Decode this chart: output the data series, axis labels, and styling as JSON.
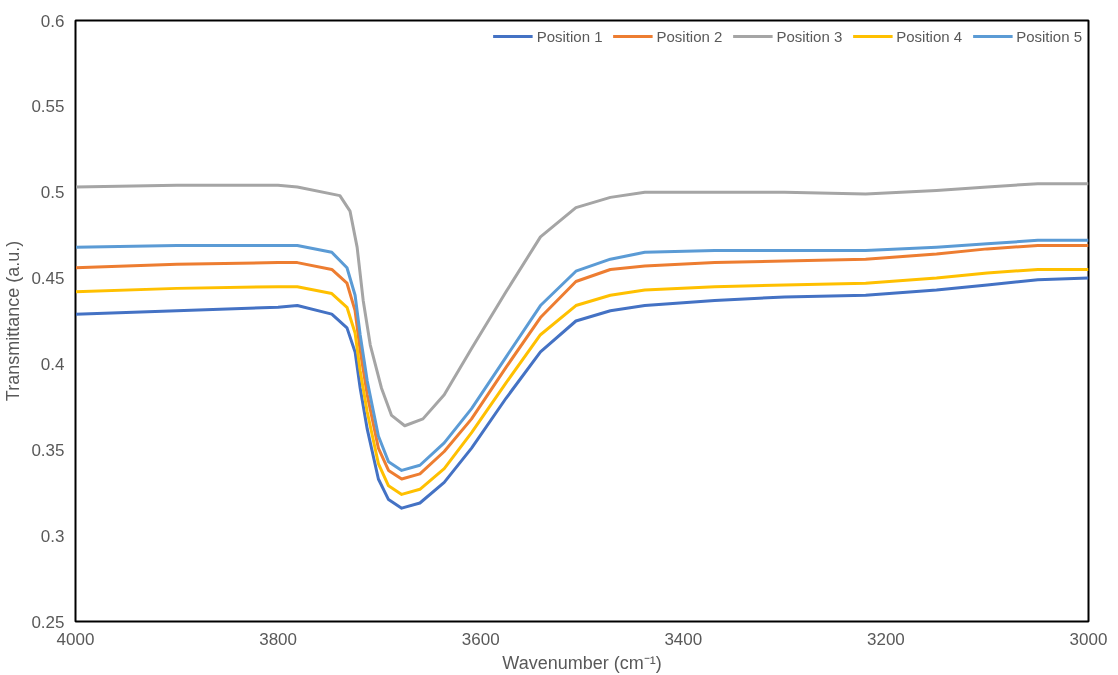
{
  "chart_data": {
    "type": "line",
    "xlabel": "Wavenumber (cm⁻¹)",
    "ylabel": "Transmittance (a.u.)",
    "x": [
      4000,
      3900,
      3800,
      3781,
      3747,
      3732,
      3724,
      3719,
      3712,
      3701,
      3691,
      3678,
      3660,
      3636,
      3609,
      3575,
      3541,
      3506,
      3472,
      3438,
      3369,
      3300,
      3220,
      3150,
      3100,
      3050,
      3000
    ],
    "series": [
      {
        "name": "Position 1",
        "color": "#4472c4",
        "values": [
          0.429,
          0.431,
          0.433,
          0.434,
          0.429,
          0.421,
          0.407,
          0.386,
          0.362,
          0.333,
          0.321,
          0.316,
          0.319,
          0.331,
          0.351,
          0.38,
          0.407,
          0.425,
          0.431,
          0.434,
          0.437,
          0.439,
          0.44,
          0.443,
          0.446,
          0.449,
          0.45
        ]
      },
      {
        "name": "Position 2",
        "color": "#ed7d31",
        "values": [
          0.456,
          0.458,
          0.459,
          0.459,
          0.455,
          0.447,
          0.431,
          0.408,
          0.382,
          0.351,
          0.338,
          0.333,
          0.336,
          0.349,
          0.368,
          0.398,
          0.427,
          0.448,
          0.455,
          0.457,
          0.459,
          0.46,
          0.461,
          0.464,
          0.467,
          0.469,
          0.469
        ]
      },
      {
        "name": "Position 3",
        "color": "#a5a5a5",
        "x": [
          4000,
          3900,
          3800,
          3781,
          3739,
          3729,
          3722,
          3716,
          3709,
          3698,
          3688,
          3675,
          3657,
          3636,
          3609,
          3575,
          3541,
          3506,
          3472,
          3438,
          3369,
          3300,
          3220,
          3150,
          3100,
          3050,
          3000
        ],
        "values": [
          0.503,
          0.504,
          0.504,
          0.503,
          0.498,
          0.489,
          0.468,
          0.437,
          0.411,
          0.386,
          0.37,
          0.364,
          0.368,
          0.382,
          0.409,
          0.442,
          0.474,
          0.491,
          0.497,
          0.5,
          0.5,
          0.5,
          0.499,
          0.501,
          0.503,
          0.505,
          0.505
        ]
      },
      {
        "name": "Position 4",
        "color": "#ffc000",
        "values": [
          0.442,
          0.444,
          0.445,
          0.445,
          0.441,
          0.433,
          0.418,
          0.396,
          0.372,
          0.342,
          0.329,
          0.324,
          0.327,
          0.339,
          0.36,
          0.389,
          0.417,
          0.434,
          0.44,
          0.443,
          0.445,
          0.446,
          0.447,
          0.45,
          0.453,
          0.455,
          0.455
        ]
      },
      {
        "name": "Position 5",
        "color": "#5b9bd5",
        "values": [
          0.468,
          0.469,
          0.469,
          0.469,
          0.465,
          0.456,
          0.44,
          0.417,
          0.39,
          0.358,
          0.343,
          0.338,
          0.341,
          0.354,
          0.374,
          0.404,
          0.434,
          0.454,
          0.461,
          0.465,
          0.466,
          0.466,
          0.466,
          0.468,
          0.47,
          0.472,
          0.472
        ]
      }
    ],
    "xlim": [
      4000,
      3000
    ],
    "xticks": [
      4000,
      3800,
      3600,
      3400,
      3200,
      3000
    ],
    "ylim": [
      0.25,
      0.6
    ],
    "yticks": [
      0.25,
      0.3,
      0.35,
      0.4,
      0.45,
      0.5,
      0.55,
      0.6
    ],
    "grid": false,
    "legend": "top right",
    "marker": "none",
    "line_style": "solid"
  }
}
